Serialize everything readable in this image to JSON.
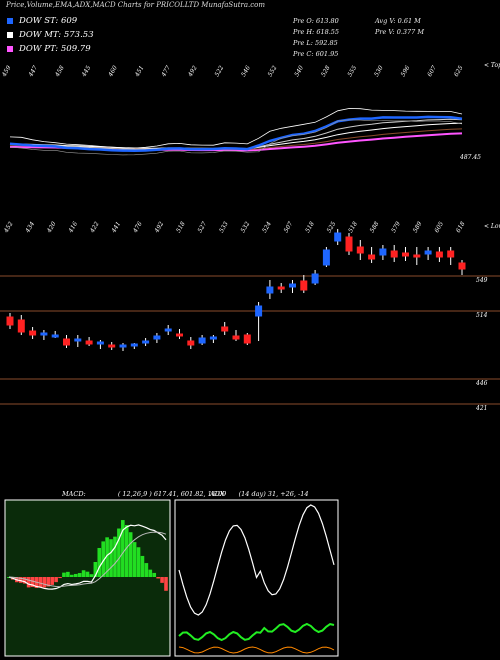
{
  "header": {
    "title": "Price,Volume,EMA,ADX,MACD Charts for PRICOLLTD MunafaSutra.com"
  },
  "legend": [
    {
      "label": "DOW ST: 609",
      "color": "#1e66ff"
    },
    {
      "label": "DOW MT: 573.53",
      "color": "#ffffff"
    },
    {
      "label": "DOW PT: 509.79",
      "color": "#ff55ff"
    }
  ],
  "stats": {
    "open": "Pre   O: 613.80",
    "high": "Pre   H: 618.55",
    "low": "Pre   L: 592.85",
    "close": "Pre   C: 601.95",
    "avgvol": "Avg V: 0.61 M",
    "prevvol": "Pre   V: 0.377 M"
  },
  "upper_panel": {
    "right_label": "< Tops",
    "last_price_label": "487.45",
    "top_labels": [
      "459",
      "447",
      "458",
      "445",
      "460",
      "451",
      "477",
      "492",
      "522",
      "546",
      "552",
      "540",
      "528",
      "555",
      "530",
      "596",
      "607",
      "625"
    ]
  },
  "lower_panel": {
    "right_label": "< Lows",
    "low_labels": [
      "452",
      "434",
      "420",
      "416",
      "422",
      "441",
      "476",
      "492",
      "518",
      "527",
      "533",
      "532",
      "524",
      "507",
      "518",
      "525",
      "518",
      "588",
      "579",
      "589",
      "605",
      "618"
    ],
    "levels": [
      "549",
      "514",
      "446",
      "421"
    ]
  },
  "macd": {
    "label": "MACD:",
    "params": "( 12,26,9 ) 617.41, 601.82, 16.09",
    "color_bg": "#0a2b0a"
  },
  "adx": {
    "label": "ADX",
    "params": "(14 day) 31, +26, -14"
  },
  "chart_data": {
    "type": "candlestick",
    "title": "Price,Volume,EMA,ADX,MACD Charts for PRICOLLTD MunafaSutra.com",
    "candles": [
      {
        "o": 508,
        "h": 512,
        "l": 496,
        "c": 500
      },
      {
        "o": 505,
        "h": 510,
        "l": 490,
        "c": 493
      },
      {
        "o": 494,
        "h": 498,
        "l": 486,
        "c": 490
      },
      {
        "o": 490,
        "h": 495,
        "l": 485,
        "c": 492
      },
      {
        "o": 490,
        "h": 494,
        "l": 487,
        "c": 490
      },
      {
        "o": 486,
        "h": 490,
        "l": 477,
        "c": 480
      },
      {
        "o": 485,
        "h": 490,
        "l": 478,
        "c": 486
      },
      {
        "o": 484,
        "h": 488,
        "l": 479,
        "c": 481
      },
      {
        "o": 481,
        "h": 485,
        "l": 476,
        "c": 483
      },
      {
        "o": 480,
        "h": 483,
        "l": 475,
        "c": 479
      },
      {
        "o": 478,
        "h": 482,
        "l": 474,
        "c": 480
      },
      {
        "o": 479,
        "h": 482,
        "l": 476,
        "c": 481
      },
      {
        "o": 483,
        "h": 487,
        "l": 479,
        "c": 484
      },
      {
        "o": 486,
        "h": 492,
        "l": 482,
        "c": 489
      },
      {
        "o": 494,
        "h": 500,
        "l": 490,
        "c": 496
      },
      {
        "o": 491,
        "h": 496,
        "l": 486,
        "c": 489
      },
      {
        "o": 484,
        "h": 488,
        "l": 476,
        "c": 480
      },
      {
        "o": 482,
        "h": 490,
        "l": 480,
        "c": 487
      },
      {
        "o": 486,
        "h": 490,
        "l": 482,
        "c": 488
      },
      {
        "o": 498,
        "h": 503,
        "l": 490,
        "c": 494
      },
      {
        "o": 489,
        "h": 495,
        "l": 484,
        "c": 486
      },
      {
        "o": 490,
        "h": 492,
        "l": 480,
        "c": 482
      },
      {
        "o": 509,
        "h": 523,
        "l": 484,
        "c": 519
      },
      {
        "o": 532,
        "h": 545,
        "l": 526,
        "c": 538
      },
      {
        "o": 538,
        "h": 542,
        "l": 532,
        "c": 536
      },
      {
        "o": 538,
        "h": 545,
        "l": 532,
        "c": 541
      },
      {
        "o": 544,
        "h": 550,
        "l": 532,
        "c": 535
      },
      {
        "o": 542,
        "h": 555,
        "l": 540,
        "c": 551
      },
      {
        "o": 560,
        "h": 578,
        "l": 558,
        "c": 575
      },
      {
        "o": 584,
        "h": 596,
        "l": 580,
        "c": 592
      },
      {
        "o": 588,
        "h": 592,
        "l": 570,
        "c": 574
      },
      {
        "o": 578,
        "h": 585,
        "l": 565,
        "c": 572
      },
      {
        "o": 570,
        "h": 578,
        "l": 562,
        "c": 566
      },
      {
        "o": 570,
        "h": 580,
        "l": 565,
        "c": 576
      },
      {
        "o": 574,
        "h": 580,
        "l": 563,
        "c": 568
      },
      {
        "o": 572,
        "h": 578,
        "l": 564,
        "c": 569
      },
      {
        "o": 570,
        "h": 578,
        "l": 560,
        "c": 568
      },
      {
        "o": 571,
        "h": 578,
        "l": 565,
        "c": 574
      },
      {
        "o": 573,
        "h": 578,
        "l": 563,
        "c": 568
      },
      {
        "o": 574,
        "h": 578,
        "l": 560,
        "c": 568
      },
      {
        "o": 562,
        "h": 565,
        "l": 550,
        "c": 556
      }
    ],
    "levels": [
      549,
      514,
      446,
      421
    ],
    "dow": {
      "st": 609,
      "mt": 573.53,
      "pt": 509.79
    },
    "last_price": 487.45
  }
}
